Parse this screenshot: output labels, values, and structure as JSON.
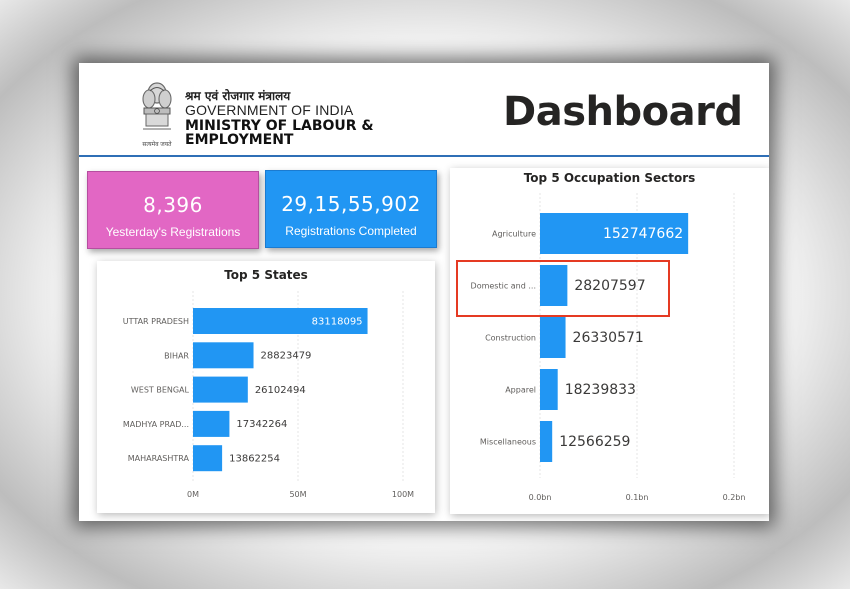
{
  "header": {
    "hindi_title": "श्रम एवं रोजगार मंत्रालय",
    "gov_line": "GOVERNMENT OF INDIA",
    "ministry_line1": "MINISTRY OF LABOUR &",
    "ministry_line2": "EMPLOYMENT",
    "emblem_caption": "सत्यमेव जयते",
    "dashboard_title": "Dashboard"
  },
  "cards": {
    "yesterday": {
      "value": "8,396",
      "label": "Yesterday's Registrations",
      "color": "#e267c4"
    },
    "completed": {
      "value": "29,15,55,902",
      "label": "Registrations Completed",
      "color": "#2196f3"
    }
  },
  "chart_data": [
    {
      "type": "bar",
      "orientation": "horizontal",
      "title": "Top 5 States",
      "categories": [
        "UTTAR PRADESH",
        "BIHAR",
        "WEST BENGAL",
        "MADHYA PRAD...",
        "MAHARASHTRA"
      ],
      "values": [
        83118095,
        28823479,
        26102494,
        17342264,
        13862254
      ],
      "xticks": [
        "0M",
        "50M",
        "100M"
      ],
      "xlim": [
        0,
        100000000
      ],
      "grid": true,
      "color": "#2196f3"
    },
    {
      "type": "bar",
      "orientation": "horizontal",
      "title": "Top 5 Occupation Sectors",
      "categories": [
        "Agriculture",
        "Domestic and ...",
        "Construction",
        "Apparel",
        "Miscellaneous"
      ],
      "values": [
        152747662,
        28207597,
        26330571,
        18239833,
        12566259
      ],
      "xticks": [
        "0.0bn",
        "0.1bn",
        "0.2bn"
      ],
      "xlim": [
        0,
        200000000
      ],
      "grid": true,
      "color": "#2196f3",
      "highlighted_category": "Domestic and ..."
    }
  ]
}
